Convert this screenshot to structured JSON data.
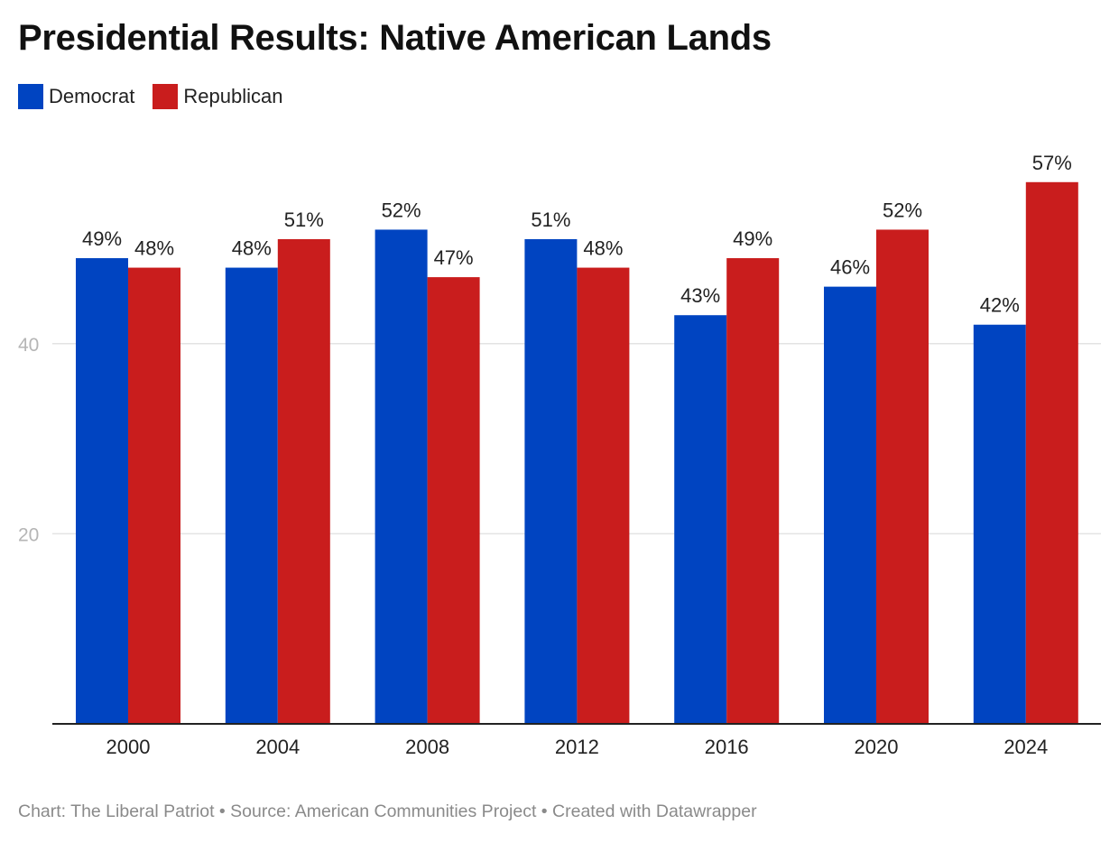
{
  "header": {
    "title": "Presidential Results: Native American Lands"
  },
  "legend": {
    "items": [
      {
        "label": "Democrat",
        "color": "#0044c1"
      },
      {
        "label": "Republican",
        "color": "#c91d1d"
      }
    ]
  },
  "footer": {
    "text": "Chart: The Liberal Patriot • Source: American Communities Project • Created with Datawrapper"
  },
  "chart_data": {
    "type": "bar",
    "title": "Presidential Results: Native American Lands",
    "xlabel": "",
    "ylabel": "",
    "categories": [
      "2000",
      "2004",
      "2008",
      "2012",
      "2016",
      "2020",
      "2024"
    ],
    "series": [
      {
        "name": "Democrat",
        "color": "#0044c1",
        "values": [
          49,
          48,
          52,
          51,
          43,
          46,
          42
        ]
      },
      {
        "name": "Republican",
        "color": "#c91d1d",
        "values": [
          48,
          51,
          47,
          48,
          49,
          52,
          57
        ]
      }
    ],
    "value_suffix": "%",
    "yticks": [
      20,
      40
    ],
    "ylim": [
      0,
      57
    ],
    "grid": true,
    "legend_position": "top-left"
  }
}
